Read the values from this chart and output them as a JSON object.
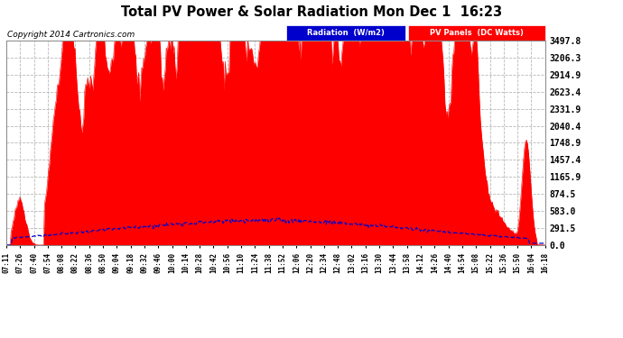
{
  "title": "Total PV Power & Solar Radiation Mon Dec 1  16:23",
  "copyright": "Copyright 2014 Cartronics.com",
  "background_color": "#ffffff",
  "plot_bg_color": "#ffffff",
  "grid_color": "#b0b0b0",
  "pv_color": "#ff0000",
  "radiation_color": "#0000cc",
  "ylim": [
    0.0,
    3497.8
  ],
  "yticks": [
    0.0,
    291.5,
    583.0,
    874.5,
    1165.9,
    1457.4,
    1748.9,
    2040.4,
    2331.9,
    2623.4,
    2914.9,
    3206.3,
    3497.8
  ],
  "legend_radiation_label": "Radiation  (W/m2)",
  "legend_pv_label": "PV Panels  (DC Watts)",
  "legend_radiation_bg": "#0000cc",
  "legend_pv_bg": "#ff0000",
  "n_points": 550
}
